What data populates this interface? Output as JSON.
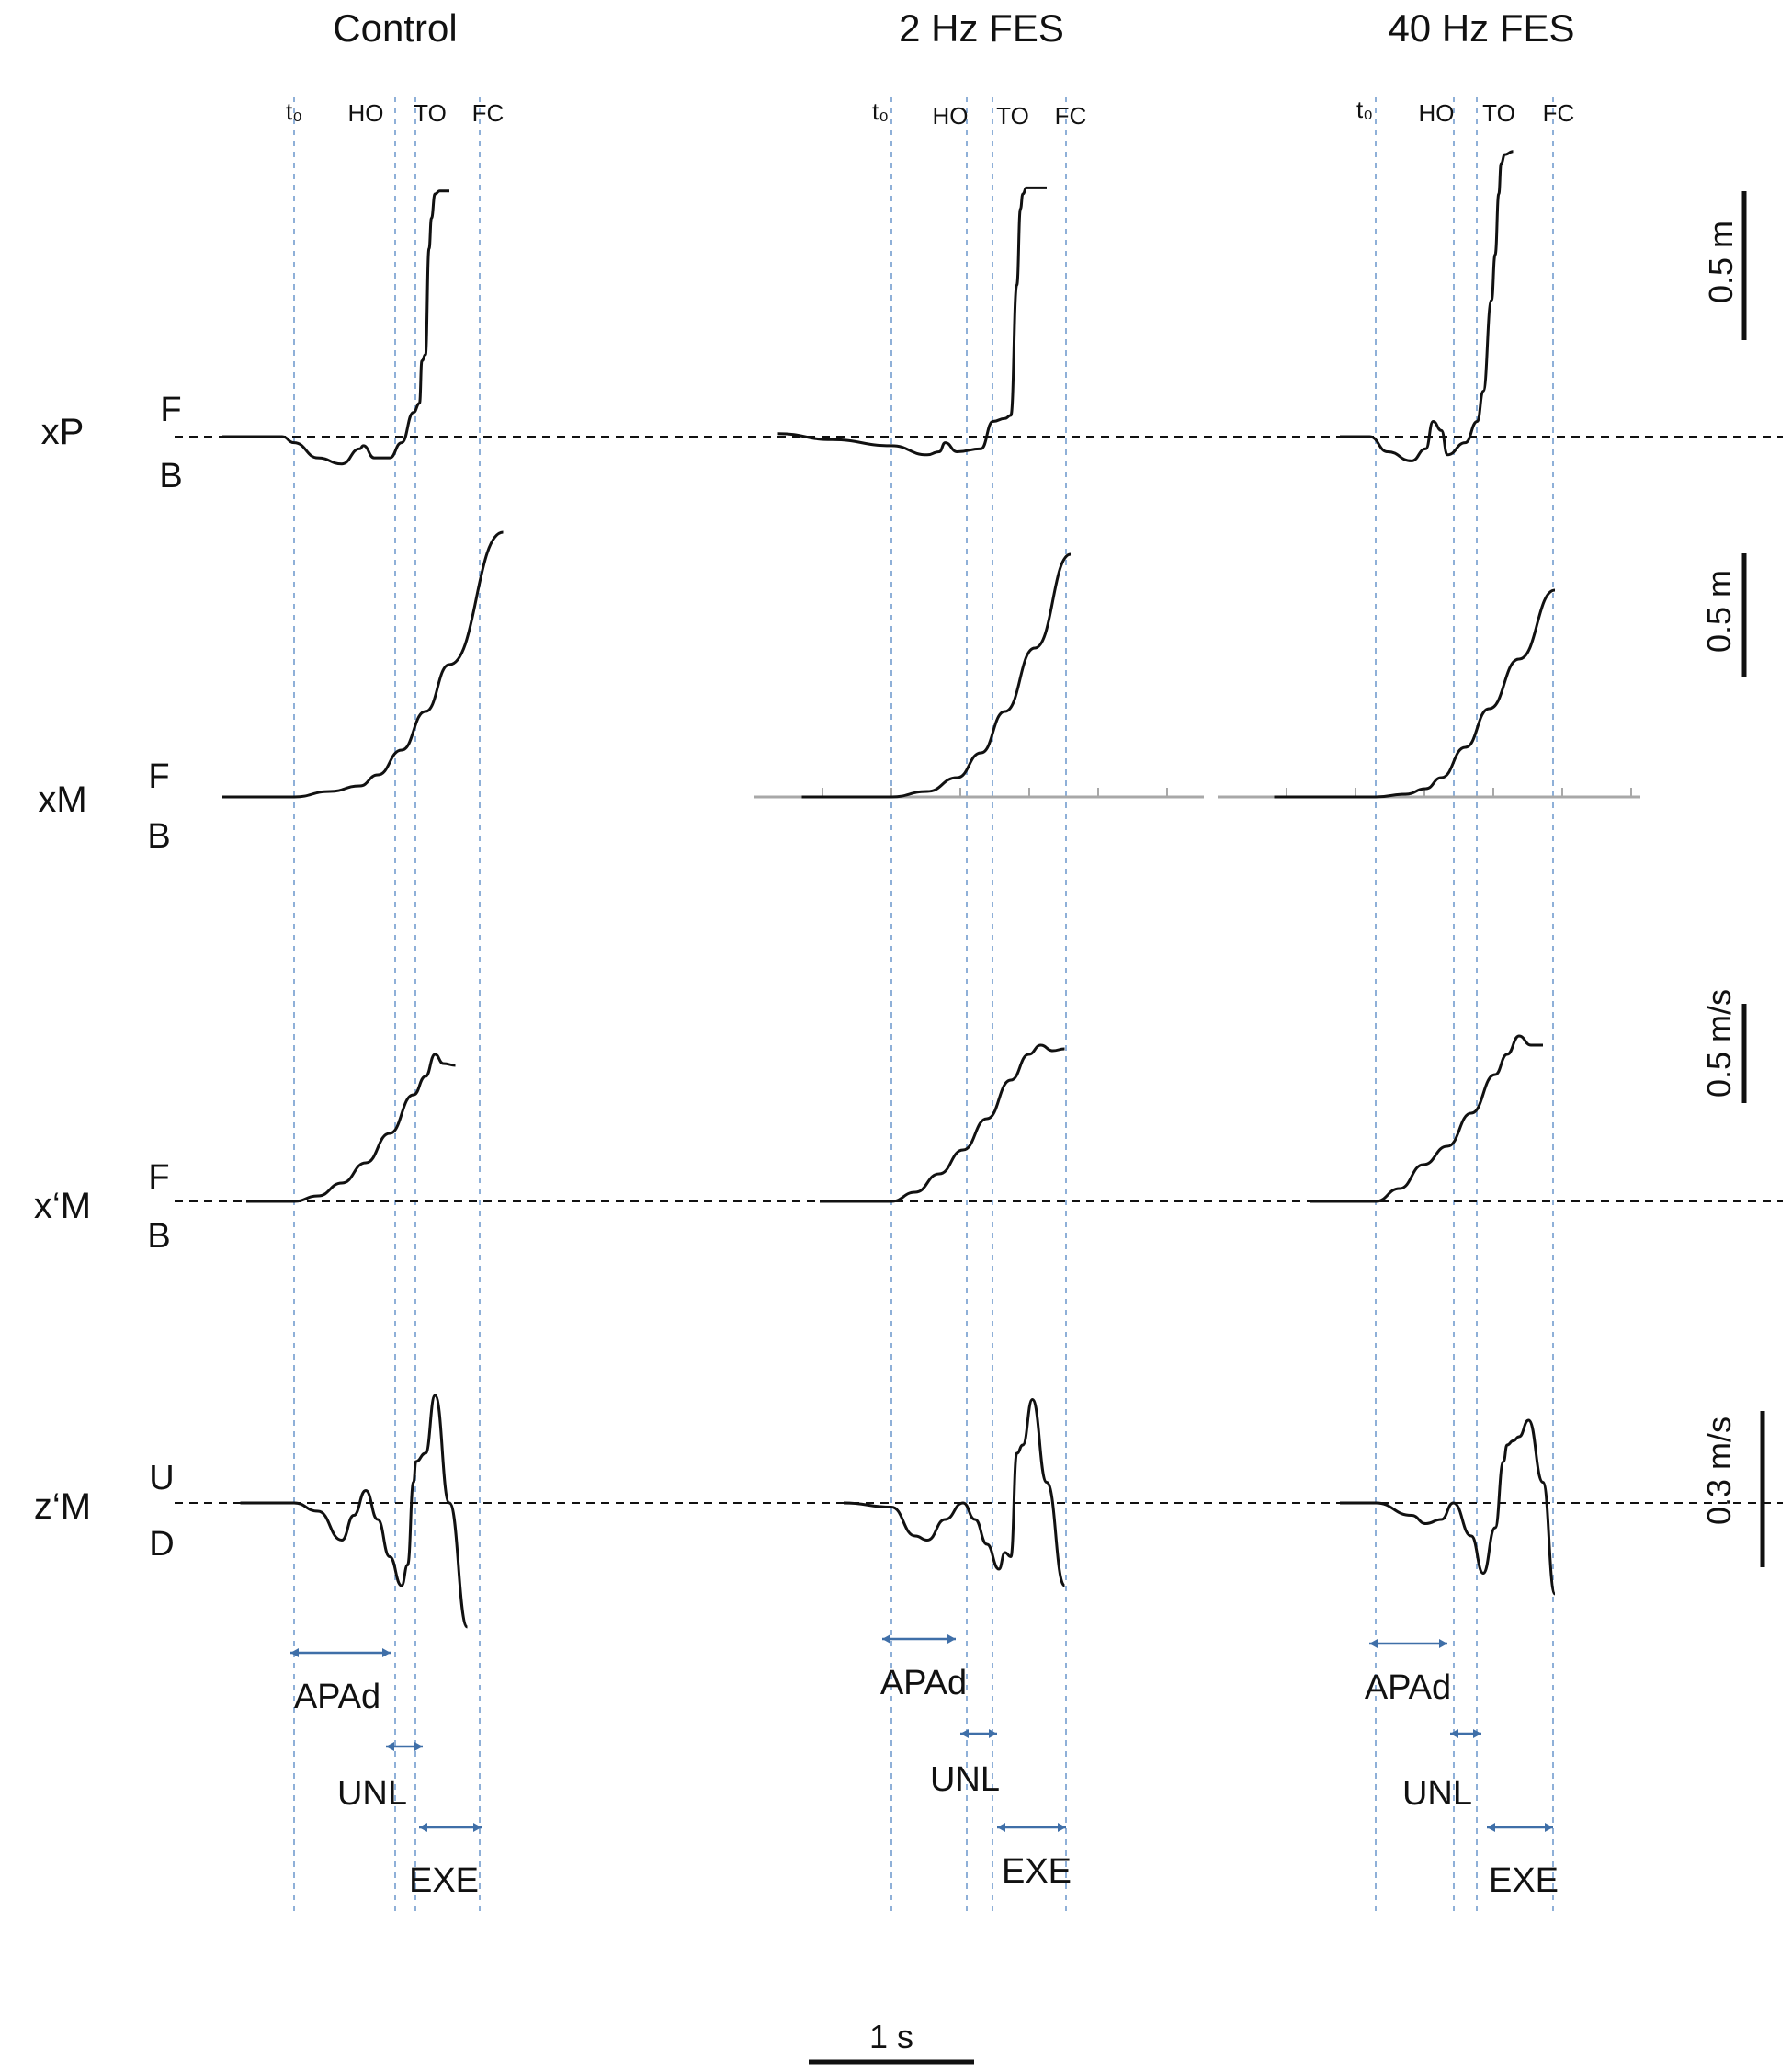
{
  "figure": {
    "conditions": [
      "Control",
      "2 Hz FES",
      "40 Hz FES"
    ],
    "event_labels": [
      "t₀",
      "HO",
      "TO",
      "FC"
    ],
    "rows": [
      {
        "label": "xP",
        "up": "F",
        "down": "B"
      },
      {
        "label": "xM",
        "up": "F",
        "down": "B"
      },
      {
        "label": "x‘M",
        "up": "F",
        "down": "B"
      },
      {
        "label": "z‘M",
        "up": "U",
        "down": "D"
      }
    ],
    "scale_bars": [
      "0.5 m",
      "0.5 m",
      "0.5 m/s",
      "0.3 m/s"
    ],
    "phases": [
      "APAd",
      "UNL",
      "EXE"
    ],
    "time_scale": "1 s",
    "colors": {
      "trace": "#111111",
      "event_line": "#8fb0d8",
      "arrow": "#3f6fa8",
      "baseline": "#111111",
      "grey_axis": "#a8a8a8"
    }
  },
  "chart_data": {
    "type": "line",
    "title": "",
    "x_unit": "s",
    "events_s": {
      "Control": {
        "t0": 0.0,
        "HO": 0.55,
        "TO": 0.67,
        "FC": 1.0
      },
      "2 Hz FES": {
        "t0": 0.0,
        "HO": 0.4,
        "TO": 0.55,
        "FC": 0.95
      },
      "40 Hz FES": {
        "t0": 0.0,
        "HO": 0.42,
        "TO": 0.55,
        "FC": 0.97
      }
    },
    "phase_durations_s": {
      "Control": {
        "APAd": 0.55,
        "UNL": 0.12,
        "EXE": 0.33
      },
      "2 Hz FES": {
        "APAd": 0.4,
        "UNL": 0.15,
        "EXE": 0.4
      },
      "40 Hz FES": {
        "APAd": 0.42,
        "UNL": 0.13,
        "EXE": 0.42
      }
    },
    "series": [
      {
        "row": "xP",
        "condition": "Control",
        "unit": "m",
        "x": [
          -0.6,
          -0.1,
          0.0,
          0.2,
          0.4,
          0.55,
          0.58,
          0.67,
          0.8,
          0.9,
          1.0,
          1.05,
          1.07,
          1.1,
          1.13,
          1.15,
          1.18,
          1.22,
          1.3
        ],
        "y": [
          0.0,
          0.0,
          -0.02,
          -0.07,
          -0.09,
          -0.04,
          -0.03,
          -0.07,
          -0.07,
          -0.02,
          0.08,
          0.11,
          0.25,
          0.27,
          0.62,
          0.72,
          0.8,
          0.81,
          0.81
        ]
      },
      {
        "row": "xP",
        "condition": "2 Hz FES",
        "unit": "m",
        "x": [
          -0.95,
          -0.5,
          0.0,
          0.3,
          0.4,
          0.45,
          0.55,
          0.75,
          0.85,
          0.95,
          1.0,
          1.05,
          1.08,
          1.1,
          1.13,
          1.2,
          1.3
        ],
        "y": [
          0.01,
          -0.01,
          -0.03,
          -0.06,
          -0.05,
          -0.02,
          -0.05,
          -0.04,
          0.05,
          0.06,
          0.07,
          0.5,
          0.75,
          0.8,
          0.82,
          0.82,
          0.82
        ]
      },
      {
        "row": "xP",
        "condition": "40 Hz FES",
        "unit": "m",
        "x": [
          -0.3,
          -0.05,
          0.1,
          0.3,
          0.42,
          0.48,
          0.55,
          0.6,
          0.75,
          0.85,
          0.9,
          0.97,
          1.0,
          1.03,
          1.05,
          1.08,
          1.15
        ],
        "y": [
          0.0,
          0.0,
          -0.05,
          -0.08,
          -0.04,
          0.05,
          0.02,
          -0.06,
          -0.02,
          0.05,
          0.15,
          0.45,
          0.6,
          0.8,
          0.9,
          0.93,
          0.94
        ]
      },
      {
        "row": "xM",
        "condition": "Control",
        "unit": "m",
        "x": [
          -0.6,
          0.0,
          0.3,
          0.55,
          0.7,
          0.9,
          1.1,
          1.3,
          1.75
        ],
        "y": [
          0.0,
          0.0,
          0.02,
          0.04,
          0.08,
          0.17,
          0.31,
          0.48,
          0.96
        ]
      },
      {
        "row": "xM",
        "condition": "2 Hz FES",
        "unit": "m",
        "x": [
          -0.75,
          0.0,
          0.3,
          0.55,
          0.75,
          0.95,
          1.2,
          1.5
        ],
        "y": [
          0.0,
          0.0,
          0.02,
          0.07,
          0.16,
          0.31,
          0.54,
          0.88
        ]
      },
      {
        "row": "xM",
        "condition": "40 Hz FES",
        "unit": "m",
        "x": [
          -0.85,
          0.0,
          0.25,
          0.42,
          0.55,
          0.75,
          0.95,
          1.2,
          1.5
        ],
        "y": [
          0.0,
          0.0,
          0.01,
          0.03,
          0.07,
          0.18,
          0.32,
          0.5,
          0.75
        ]
      },
      {
        "row": "x'M",
        "condition": "Control",
        "unit": "m/s",
        "x": [
          -0.4,
          0.0,
          0.2,
          0.4,
          0.6,
          0.8,
          1.0,
          1.1,
          1.18,
          1.25,
          1.35
        ],
        "y": [
          0.0,
          0.0,
          0.03,
          0.1,
          0.21,
          0.37,
          0.58,
          0.68,
          0.8,
          0.75,
          0.74
        ]
      },
      {
        "row": "x'M",
        "condition": "2 Hz FES",
        "unit": "m/s",
        "x": [
          -0.6,
          0.0,
          0.2,
          0.4,
          0.6,
          0.8,
          1.0,
          1.15,
          1.25,
          1.35,
          1.45
        ],
        "y": [
          0.0,
          0.0,
          0.05,
          0.15,
          0.28,
          0.45,
          0.66,
          0.8,
          0.85,
          0.82,
          0.83
        ]
      },
      {
        "row": "x'M",
        "condition": "40 Hz FES",
        "unit": "m/s",
        "x": [
          -0.55,
          0.0,
          0.2,
          0.4,
          0.6,
          0.8,
          1.0,
          1.1,
          1.2,
          1.3,
          1.4
        ],
        "y": [
          0.0,
          0.0,
          0.07,
          0.2,
          0.3,
          0.48,
          0.69,
          0.8,
          0.9,
          0.85,
          0.85
        ]
      },
      {
        "row": "z'M",
        "condition": "Control",
        "unit": "m/s",
        "x": [
          -0.45,
          0.0,
          0.2,
          0.4,
          0.5,
          0.6,
          0.7,
          0.8,
          0.9,
          0.95,
          1.0,
          1.02,
          1.1,
          1.18,
          1.3,
          1.45
        ],
        "y": [
          0.0,
          0.0,
          -0.02,
          -0.09,
          -0.03,
          0.03,
          -0.04,
          -0.13,
          -0.2,
          -0.15,
          0.05,
          0.1,
          0.12,
          0.26,
          0.0,
          -0.3
        ]
      },
      {
        "row": "z'M",
        "condition": "2 Hz FES",
        "unit": "m/s",
        "x": [
          -0.4,
          0.0,
          0.2,
          0.3,
          0.45,
          0.6,
          0.7,
          0.8,
          0.9,
          0.95,
          1.0,
          1.05,
          1.1,
          1.18,
          1.3,
          1.45
        ],
        "y": [
          0.0,
          -0.01,
          -0.08,
          -0.09,
          -0.04,
          0.0,
          -0.04,
          -0.1,
          -0.16,
          -0.12,
          -0.13,
          0.12,
          0.14,
          0.25,
          0.05,
          -0.2
        ]
      },
      {
        "row": "z'M",
        "condition": "40 Hz FES",
        "unit": "m/s",
        "x": [
          -0.3,
          0.0,
          0.3,
          0.42,
          0.55,
          0.65,
          0.8,
          0.9,
          1.0,
          1.07,
          1.1,
          1.15,
          1.2,
          1.28,
          1.4,
          1.5
        ],
        "y": [
          0.0,
          0.0,
          -0.03,
          -0.05,
          -0.04,
          0.0,
          -0.08,
          -0.17,
          -0.06,
          0.1,
          0.14,
          0.15,
          0.16,
          0.2,
          0.05,
          -0.22
        ]
      }
    ]
  }
}
